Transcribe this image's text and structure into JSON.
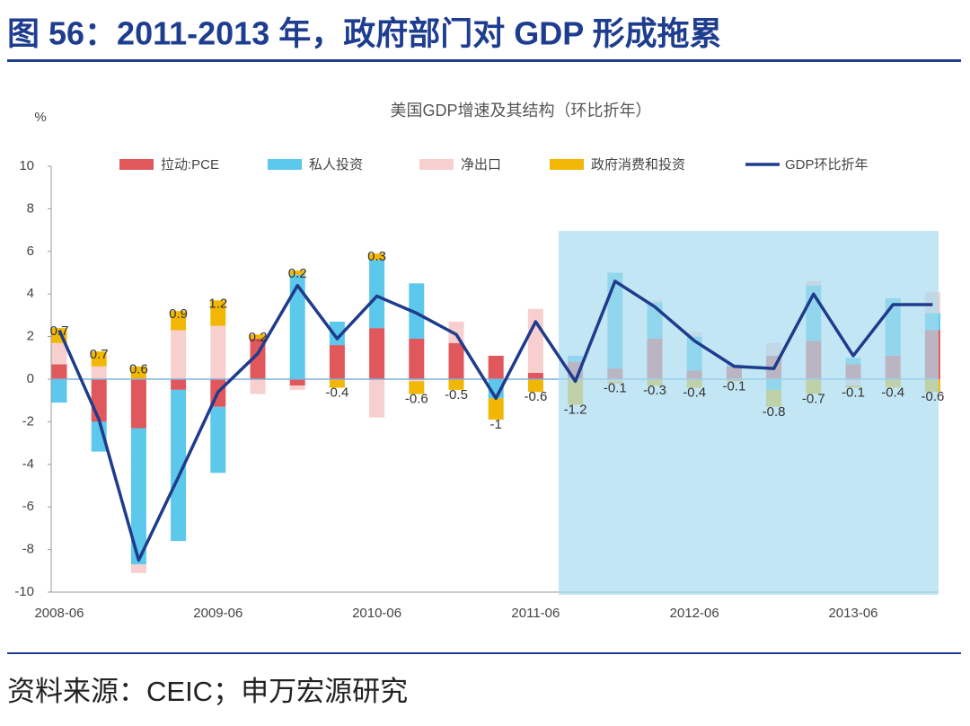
{
  "header": {
    "title": "图 56：2011-2013 年，政府部门对 GDP 形成拖累"
  },
  "source": "资料来源：CEIC；申万宏源研究",
  "chart_data": {
    "type": "bar",
    "stacked": true,
    "title": "美国GDP增速及其结构（环比折年）",
    "y_label": "%",
    "categories": [
      "2008-06",
      null,
      null,
      null,
      "2009-06",
      null,
      null,
      null,
      "2010-06",
      null,
      null,
      null,
      "2011-06",
      null,
      null,
      null,
      "2012-06",
      null,
      null,
      null,
      "2013-06",
      null,
      null
    ],
    "ylim": [
      -10,
      10
    ],
    "yticks": [
      -10,
      -8,
      -6,
      -4,
      -2,
      0,
      2,
      4,
      6,
      8,
      10
    ],
    "series": [
      {
        "name": "拉动:PCE",
        "type": "bar",
        "color": "#e0585b",
        "values": [
          0.7,
          -2.0,
          -2.3,
          -0.5,
          -1.3,
          1.9,
          -0.3,
          1.6,
          2.4,
          1.9,
          1.7,
          1.1,
          0.3,
          0.8,
          0.5,
          1.9,
          0.4,
          0.6,
          1.1,
          1.8,
          0.7,
          1.1,
          2.3
        ]
      },
      {
        "name": "私人投资",
        "type": "bar",
        "color": "#5bc8ec",
        "values": [
          -1.1,
          -1.4,
          -6.4,
          -7.1,
          -3.1,
          0,
          4.9,
          1.1,
          3.2,
          2.6,
          0,
          -0.9,
          0,
          0.3,
          4.5,
          1.7,
          1.6,
          0.1,
          -0.5,
          2.6,
          0.3,
          2.7,
          0.8
        ]
      },
      {
        "name": "净出口",
        "type": "bar",
        "color": "#f7cfcf",
        "values": [
          1.0,
          0.6,
          -0.4,
          2.3,
          2.5,
          -0.7,
          -0.2,
          0,
          -1.8,
          -0.1,
          1.0,
          0,
          3.0,
          0,
          -0.1,
          0.1,
          0.2,
          0,
          0.6,
          0.2,
          -0.3,
          0,
          1.0
        ]
      },
      {
        "name": "政府消费和投资",
        "type": "bar",
        "color": "#f2b705",
        "labels": true,
        "values": [
          0.7,
          0.7,
          0.6,
          0.9,
          1.2,
          0.2,
          0.2,
          -0.4,
          0.3,
          -0.6,
          -0.5,
          -1.0,
          -0.6,
          -1.2,
          -0.1,
          -0.3,
          -0.4,
          -0.1,
          -0.8,
          -0.7,
          -0.1,
          -0.4,
          -0.6
        ]
      },
      {
        "name": "GDP环比折年",
        "type": "line",
        "color": "#1f3c8c",
        "values": [
          2.3,
          -1.9,
          -8.5,
          -4.6,
          -0.6,
          1.2,
          4.4,
          1.9,
          3.9,
          3.1,
          2.1,
          -0.9,
          2.7,
          -0.1,
          4.6,
          3.4,
          1.8,
          0.6,
          0.5,
          4.0,
          1.1,
          3.5,
          3.5
        ]
      }
    ],
    "highlight_color": "#a9dcf0"
  }
}
